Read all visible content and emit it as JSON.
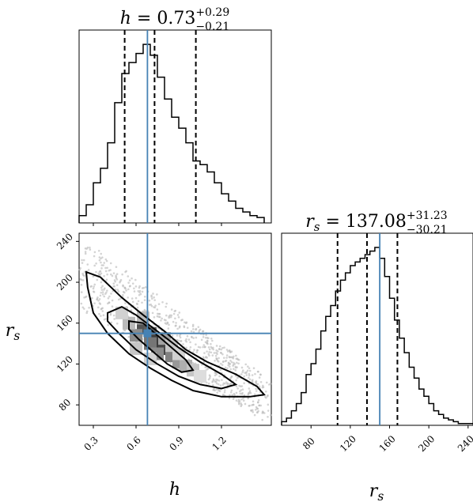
{
  "chart_data": [
    {
      "type": "histogram",
      "panel": "h-marginal",
      "title": {
        "var": "h",
        "value": "0.73",
        "plus": "+0.29",
        "minus": "−0.21"
      },
      "x": [
        0.2,
        0.25,
        0.3,
        0.35,
        0.4,
        0.45,
        0.5,
        0.55,
        0.6,
        0.65,
        0.7,
        0.75,
        0.8,
        0.85,
        0.9,
        0.95,
        1.0,
        1.05,
        1.1,
        1.15,
        1.2,
        1.25,
        1.3,
        1.35,
        1.4,
        1.45,
        1.5
      ],
      "values": [
        4,
        10,
        22,
        30,
        44,
        66,
        82,
        88,
        93,
        98,
        92,
        80,
        68,
        58,
        52,
        44,
        34,
        32,
        28,
        22,
        16,
        12,
        8,
        6,
        4,
        3
      ],
      "xlim": [
        0.2,
        1.55
      ],
      "quantiles": [
        0.52,
        0.73,
        1.02
      ],
      "truth": 0.68
    },
    {
      "type": "histogram",
      "panel": "rs-marginal",
      "title": {
        "var": "r_s",
        "value": "137.08",
        "plus": "+31.23",
        "minus": "−30.21"
      },
      "x": [
        50,
        55,
        60,
        65,
        70,
        75,
        80,
        85,
        90,
        95,
        100,
        105,
        110,
        115,
        120,
        125,
        130,
        135,
        140,
        145,
        150,
        155,
        160,
        165,
        170,
        175,
        180,
        185,
        190,
        195,
        200,
        205,
        210,
        215,
        220,
        225,
        230,
        235,
        240,
        245,
        250
      ],
      "values": [
        2,
        4,
        8,
        12,
        18,
        28,
        34,
        42,
        52,
        60,
        66,
        74,
        80,
        84,
        88,
        90,
        92,
        94,
        96,
        98,
        92,
        82,
        70,
        58,
        48,
        40,
        32,
        26,
        20,
        16,
        12,
        8,
        6,
        4,
        3,
        2,
        1,
        1,
        1,
        1
      ],
      "xlim": [
        50,
        245
      ],
      "quantiles": [
        107,
        137,
        168
      ],
      "truth": 150
    },
    {
      "type": "scatter",
      "panel": "joint",
      "xlabel": "h",
      "ylabel": "r_s",
      "xlim": [
        0.2,
        1.55
      ],
      "ylim": [
        60,
        248
      ],
      "xticks": [
        "0.3",
        "0.6",
        "0.9",
        "1.2"
      ],
      "yticks": [
        "80",
        "120",
        "160",
        "200",
        "240"
      ],
      "truth": [
        0.68,
        150
      ],
      "contours": [
        [
          [
            0.25,
            210
          ],
          [
            0.35,
            205
          ],
          [
            0.5,
            185
          ],
          [
            0.65,
            168
          ],
          [
            0.8,
            152
          ],
          [
            0.95,
            134
          ],
          [
            1.1,
            122
          ],
          [
            1.3,
            110
          ],
          [
            1.45,
            98
          ],
          [
            1.5,
            90
          ],
          [
            1.4,
            88
          ],
          [
            1.2,
            88
          ],
          [
            1.0,
            94
          ],
          [
            0.85,
            104
          ],
          [
            0.7,
            116
          ],
          [
            0.55,
            130
          ],
          [
            0.4,
            150
          ],
          [
            0.3,
            170
          ],
          [
            0.26,
            195
          ]
        ],
        [
          [
            0.4,
            170
          ],
          [
            0.5,
            176
          ],
          [
            0.6,
            168
          ],
          [
            0.75,
            152
          ],
          [
            0.9,
            136
          ],
          [
            1.05,
            122
          ],
          [
            1.2,
            110
          ],
          [
            1.3,
            100
          ],
          [
            1.2,
            96
          ],
          [
            1.05,
            100
          ],
          [
            0.9,
            108
          ],
          [
            0.75,
            120
          ],
          [
            0.6,
            134
          ],
          [
            0.48,
            150
          ],
          [
            0.4,
            162
          ]
        ],
        [
          [
            0.55,
            162
          ],
          [
            0.65,
            160
          ],
          [
            0.75,
            148
          ],
          [
            0.85,
            136
          ],
          [
            0.95,
            124
          ],
          [
            1.0,
            114
          ],
          [
            0.92,
            112
          ],
          [
            0.82,
            120
          ],
          [
            0.72,
            132
          ],
          [
            0.62,
            144
          ],
          [
            0.55,
            154
          ]
        ]
      ],
      "density": [
        [
          0.65,
          155,
          0.75
        ],
        [
          0.7,
          150,
          0.7
        ],
        [
          0.75,
          142,
          0.85
        ],
        [
          0.8,
          135,
          0.8
        ],
        [
          0.7,
          140,
          0.6
        ],
        [
          0.85,
          128,
          0.55
        ],
        [
          0.9,
          122,
          0.45
        ],
        [
          0.6,
          148,
          0.5
        ],
        [
          0.95,
          118,
          0.35
        ],
        [
          0.55,
          160,
          0.3
        ],
        [
          1.0,
          114,
          0.25
        ],
        [
          0.65,
          165,
          0.3
        ],
        [
          0.8,
          145,
          0.4
        ],
        [
          0.75,
          130,
          0.5
        ],
        [
          0.85,
          138,
          0.25
        ],
        [
          0.5,
          170,
          0.2
        ],
        [
          0.6,
          135,
          0.25
        ],
        [
          1.05,
          108,
          0.15
        ],
        [
          0.9,
          130,
          0.2
        ],
        [
          0.7,
          125,
          0.2
        ]
      ]
    }
  ]
}
